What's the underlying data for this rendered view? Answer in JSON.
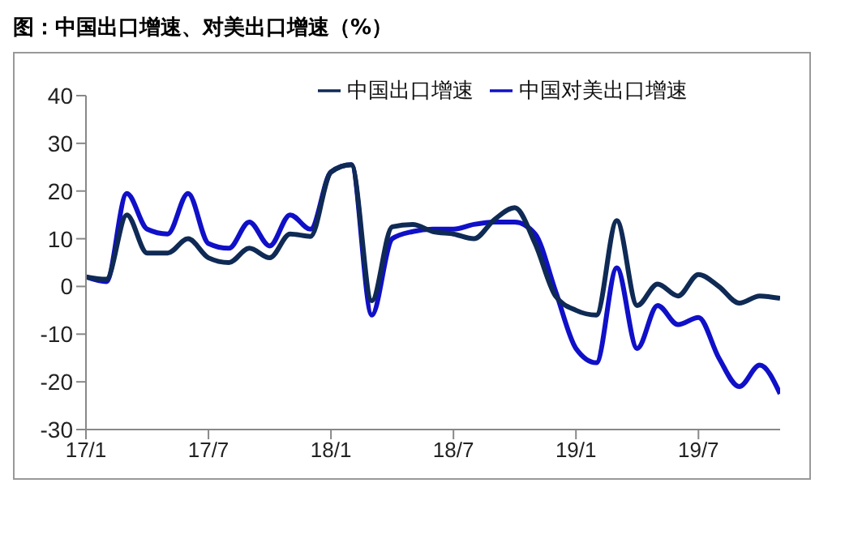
{
  "chart_data": {
    "type": "line",
    "title": "图：中国出口增速、对美出口增速（%）",
    "categories": [
      "17/1",
      null,
      null,
      null,
      null,
      null,
      "17/7",
      null,
      null,
      null,
      null,
      null,
      "18/1",
      null,
      null,
      null,
      null,
      null,
      "18/7",
      null,
      null,
      null,
      null,
      null,
      "19/1",
      null,
      null,
      null,
      null,
      null,
      "19/7",
      null,
      null,
      null,
      null
    ],
    "series": [
      {
        "name": "中国对美出口增速",
        "color": "#1010c8",
        "values": [
          2,
          1,
          19.5,
          12,
          11,
          19.5,
          9,
          8,
          13.5,
          8.5,
          15,
          12,
          24,
          25.5,
          -6,
          10,
          11.5,
          12,
          12,
          13,
          13.5,
          13.5,
          11,
          -1,
          -13,
          -16,
          3.9,
          -13,
          -4,
          -8,
          -6.5,
          -15,
          -21,
          -16.5,
          -22.5
        ]
      },
      {
        "name": "中国出口增速",
        "color": "#0f2a55",
        "values": [
          2,
          1.5,
          15,
          7,
          7,
          10,
          6,
          5,
          8,
          6,
          11,
          10.5,
          24,
          25.5,
          -3,
          12.5,
          13,
          11.5,
          11,
          10,
          14,
          16.5,
          9,
          -2,
          -5,
          -6,
          13.8,
          -4,
          0.5,
          -2,
          2.5,
          0,
          -3.5,
          -2,
          -2.5
        ]
      }
    ],
    "ylim": [
      -30,
      40
    ],
    "yticks": [
      -30,
      -20,
      -10,
      0,
      10,
      20,
      30,
      40
    ],
    "grid": false,
    "legend": "top",
    "marker": "none",
    "line_style": "solid"
  }
}
